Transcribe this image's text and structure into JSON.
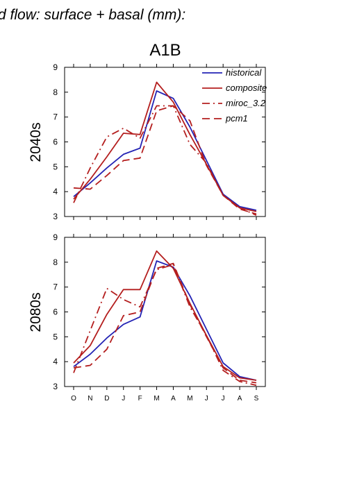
{
  "figure": {
    "title": "d flow: surface + basal (mm):",
    "scenario": "A1B",
    "colors": {
      "historical": "#2323b4",
      "composite": "#b41e1e",
      "miroc_3.2": "#b41e1e",
      "pcm1": "#b41e1e"
    }
  },
  "chart_data": [
    {
      "type": "line",
      "ylabel": "2040s",
      "ylim": [
        3,
        9
      ],
      "yticks": [
        "3",
        "4",
        "5",
        "6",
        "7",
        "8",
        "9"
      ],
      "categories": [
        "O",
        "N",
        "D",
        "J",
        "F",
        "M",
        "A",
        "M",
        "J",
        "J",
        "A",
        "S"
      ],
      "legend": "top-right",
      "series": [
        {
          "name": "historical",
          "style": "solid",
          "color": "#2323b4",
          "values": [
            3.8,
            4.35,
            4.95,
            5.5,
            5.75,
            8.05,
            7.75,
            6.6,
            5.25,
            3.9,
            3.4,
            3.25
          ]
        },
        {
          "name": "composite",
          "style": "solid",
          "color": "#b41e1e",
          "values": [
            3.7,
            4.5,
            5.4,
            6.35,
            6.3,
            8.4,
            7.6,
            6.3,
            5.1,
            3.85,
            3.35,
            3.2
          ]
        },
        {
          "name": "miroc_3.2",
          "style": "dashdot",
          "color": "#b41e1e",
          "values": [
            3.55,
            4.95,
            6.2,
            6.55,
            6.15,
            7.45,
            7.45,
            5.9,
            5.15,
            3.85,
            3.35,
            3.05
          ]
        },
        {
          "name": "pcm1",
          "style": "dash",
          "color": "#b41e1e",
          "values": [
            4.15,
            4.1,
            4.65,
            5.25,
            5.35,
            7.25,
            7.45,
            6.85,
            5.05,
            3.85,
            3.3,
            3.1
          ]
        }
      ]
    },
    {
      "type": "line",
      "ylabel": "2080s",
      "ylim": [
        3,
        9
      ],
      "yticks": [
        "3",
        "4",
        "5",
        "6",
        "7",
        "8",
        "9"
      ],
      "categories": [
        "O",
        "N",
        "D",
        "J",
        "F",
        "M",
        "A",
        "M",
        "J",
        "J",
        "A",
        "S"
      ],
      "series": [
        {
          "name": "historical",
          "style": "solid",
          "color": "#2323b4",
          "values": [
            3.8,
            4.3,
            4.95,
            5.5,
            5.8,
            8.05,
            7.8,
            6.65,
            5.3,
            3.95,
            3.4,
            3.25
          ]
        },
        {
          "name": "composite",
          "style": "solid",
          "color": "#b41e1e",
          "values": [
            3.95,
            4.65,
            5.9,
            6.9,
            6.9,
            8.45,
            7.75,
            6.35,
            5.05,
            3.8,
            3.35,
            3.25
          ]
        },
        {
          "name": "miroc_3.2",
          "style": "dashdot",
          "color": "#b41e1e",
          "values": [
            3.55,
            5.25,
            6.95,
            6.5,
            6.2,
            7.7,
            7.9,
            6.2,
            5.05,
            3.65,
            3.2,
            3.05
          ]
        },
        {
          "name": "pcm1",
          "style": "dash",
          "color": "#b41e1e",
          "values": [
            3.75,
            3.85,
            4.5,
            5.85,
            6.0,
            7.75,
            7.95,
            6.3,
            5.0,
            3.75,
            3.25,
            3.15
          ]
        }
      ]
    }
  ]
}
